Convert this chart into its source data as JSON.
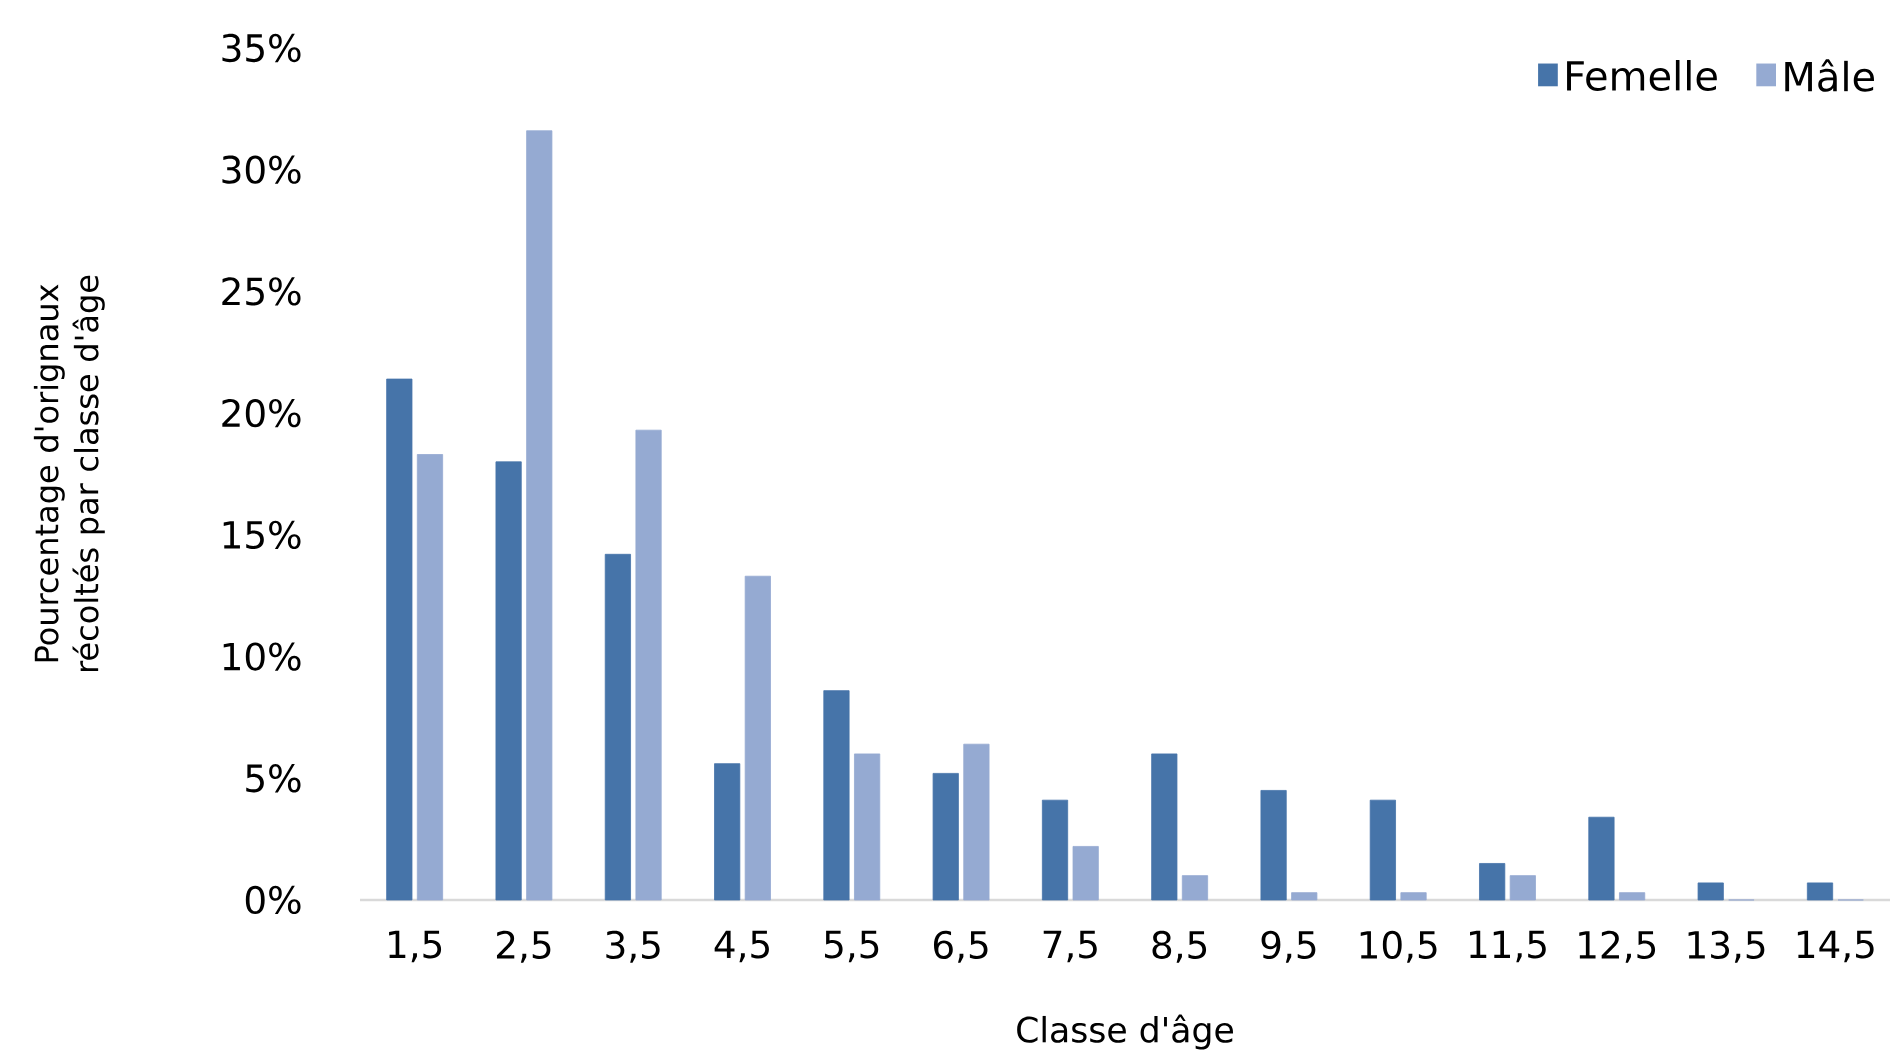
{
  "chart_data": {
    "type": "bar",
    "xlabel": "Classe d'âge",
    "ylabel": "Pourcentage d'orignaux récoltés par classe d'âge",
    "categories": [
      "1,5",
      "2,5",
      "3,5",
      "4,5",
      "5,5",
      "6,5",
      "7,5",
      "8,5",
      "9,5",
      "10,5",
      "11,5",
      "12,5",
      "13,5",
      "14,5"
    ],
    "series": [
      {
        "name": "Femelle",
        "color": "#4674a9",
        "values": [
          21.4,
          18.0,
          14.2,
          5.6,
          8.6,
          5.2,
          4.1,
          6.0,
          4.5,
          4.1,
          1.5,
          3.4,
          0.7,
          0.7
        ]
      },
      {
        "name": "Mâle",
        "color": "#95aad2",
        "values": [
          18.3,
          31.6,
          19.3,
          13.3,
          6.0,
          6.4,
          2.2,
          1.0,
          0.3,
          0.3,
          1.0,
          0.3,
          0,
          0
        ]
      }
    ],
    "ylim": [
      0,
      35
    ],
    "yticks": [
      {
        "value": 0,
        "label": "0%"
      },
      {
        "value": 5,
        "label": "5%"
      },
      {
        "value": 10,
        "label": "10%"
      },
      {
        "value": 15,
        "label": "15%"
      },
      {
        "value": 20,
        "label": "20%"
      },
      {
        "value": 25,
        "label": "25%"
      },
      {
        "value": 30,
        "label": "30%"
      },
      {
        "value": 35,
        "label": "35%"
      }
    ],
    "legend": "top right",
    "grid": false
  }
}
